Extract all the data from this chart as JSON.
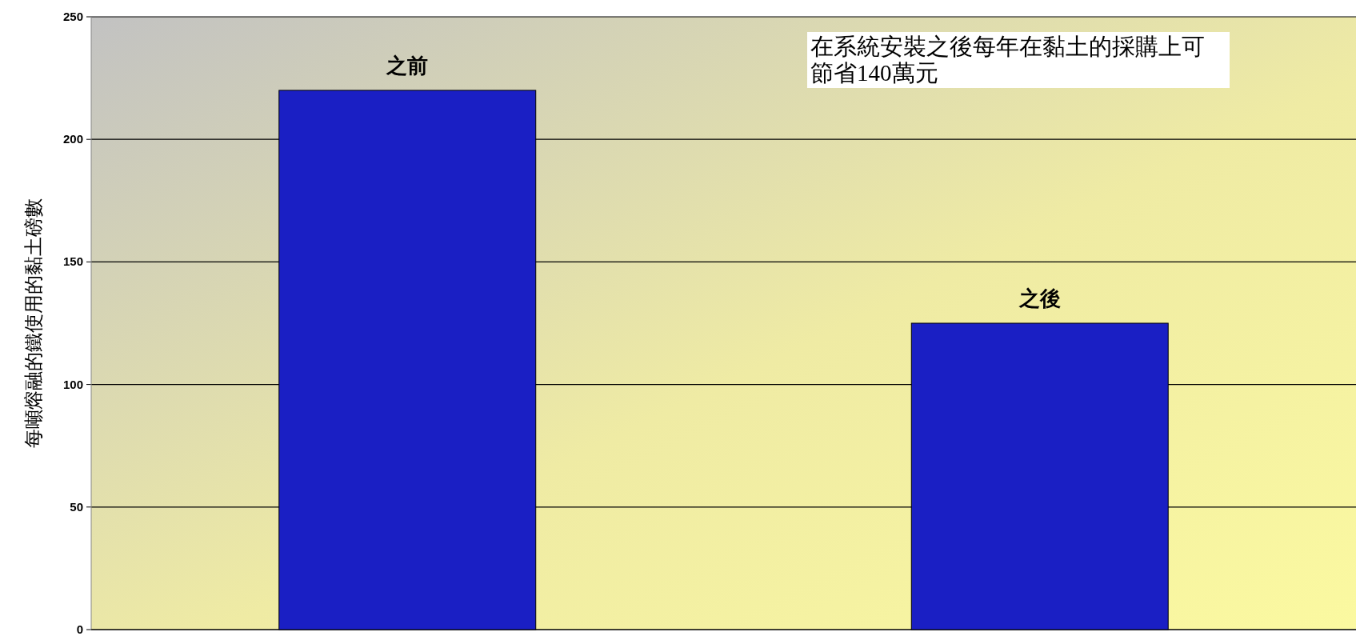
{
  "chart_data": {
    "type": "bar",
    "categories": [
      "之前",
      "之後"
    ],
    "values": [
      220,
      125
    ],
    "color": "#1a1fc4",
    "ylabel": "每噸熔融的鐵使用的黏土磅數",
    "ylim": [
      0,
      250
    ],
    "yticks": [
      0,
      50,
      100,
      150,
      200,
      250
    ],
    "grid": "y",
    "annotations": [
      "在系統安裝之後每年在黏土的採購上可節省140萬元"
    ]
  }
}
